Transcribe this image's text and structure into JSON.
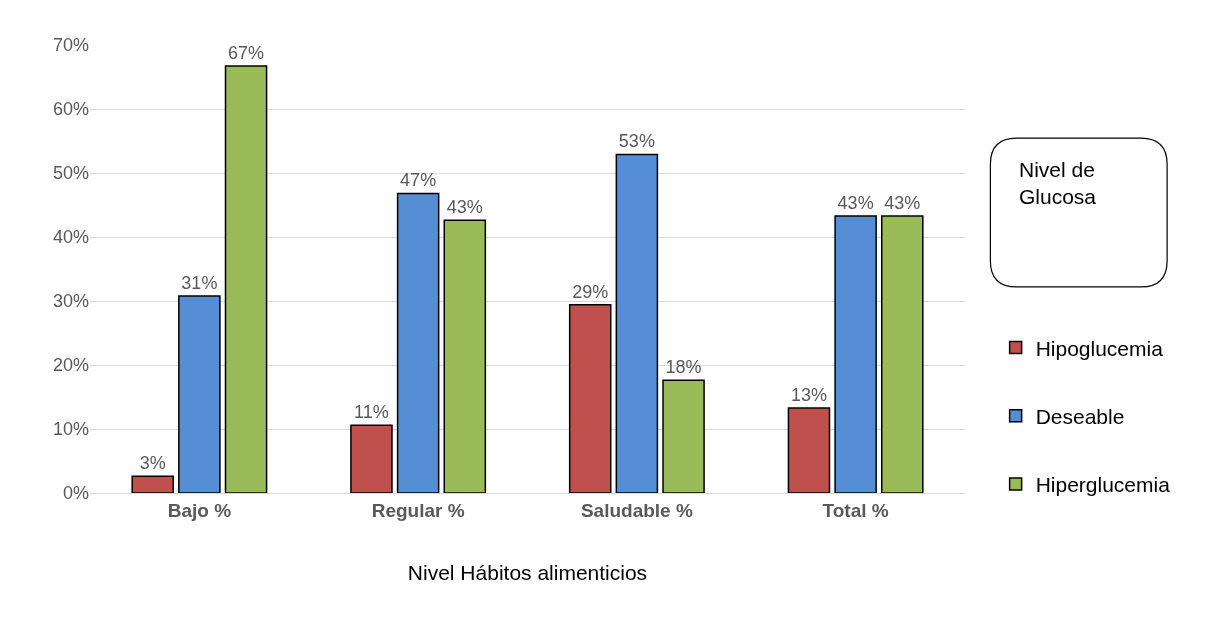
{
  "chart_data": {
    "type": "bar",
    "xlabel": "Nivel Hábitos alimenticios",
    "legend_title": "Nivel de Glucosa",
    "categories": [
      "Bajo %",
      "Regular %",
      "Saludable %",
      "Total %"
    ],
    "series": [
      {
        "name": "Hipoglucemia",
        "color": "#c0504d",
        "values": [
          2.6,
          10.6,
          29.4,
          13.3
        ],
        "value_labels": [
          "3%",
          "11%",
          "29%",
          "13%"
        ]
      },
      {
        "name": "Deseable",
        "color": "#558ed5",
        "values": [
          30.8,
          46.8,
          52.9,
          43.3
        ],
        "value_labels": [
          "31%",
          "47%",
          "53%",
          "43%"
        ]
      },
      {
        "name": "Hiperglucemia",
        "color": "#9bbb59",
        "values": [
          66.7,
          42.6,
          17.6,
          43.3
        ],
        "value_labels": [
          "67%",
          "43%",
          "18%",
          "43%"
        ]
      }
    ],
    "ylim": [
      0,
      70
    ],
    "yticks": [
      {
        "value": 0,
        "label": "0%"
      },
      {
        "value": 10,
        "label": "10%"
      },
      {
        "value": 20,
        "label": "20%"
      },
      {
        "value": 30,
        "label": "30%"
      },
      {
        "value": 40,
        "label": "40%"
      },
      {
        "value": 50,
        "label": "50%"
      },
      {
        "value": 60,
        "label": "60%"
      },
      {
        "value": 70,
        "label": "70%"
      }
    ],
    "grid": "y",
    "legend": "right"
  }
}
